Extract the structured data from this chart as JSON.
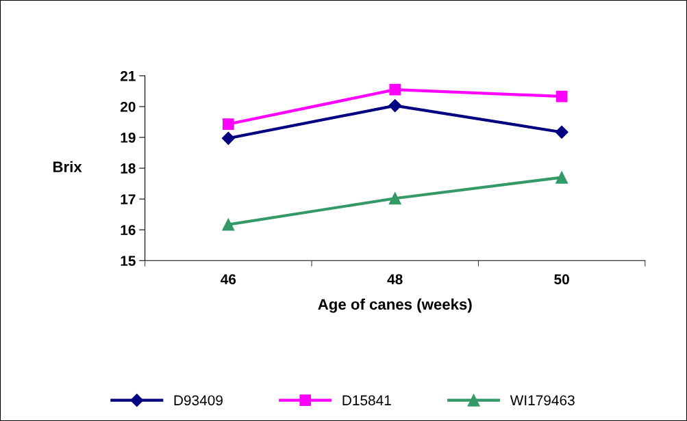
{
  "chart_data": {
    "type": "line",
    "xlabel": "Age of canes (weeks)",
    "ylabel": "Brix",
    "categories": [
      "46",
      "48",
      "50"
    ],
    "series": [
      {
        "name": "D93409",
        "color": "#000080",
        "values": [
          18.97,
          20.03,
          19.17
        ],
        "marker": "diamond"
      },
      {
        "name": "D15841",
        "color": "#ff00ff",
        "values": [
          19.43,
          20.55,
          20.33
        ],
        "marker": "square"
      },
      {
        "name": "WI179463",
        "color": "#339966",
        "values": [
          16.17,
          17.02,
          17.7
        ],
        "marker": "triangle"
      }
    ],
    "ylim": [
      15,
      21
    ],
    "yticks": [
      15,
      16,
      17,
      18,
      19,
      20,
      21
    ],
    "grid": false,
    "legend": "bottom"
  }
}
